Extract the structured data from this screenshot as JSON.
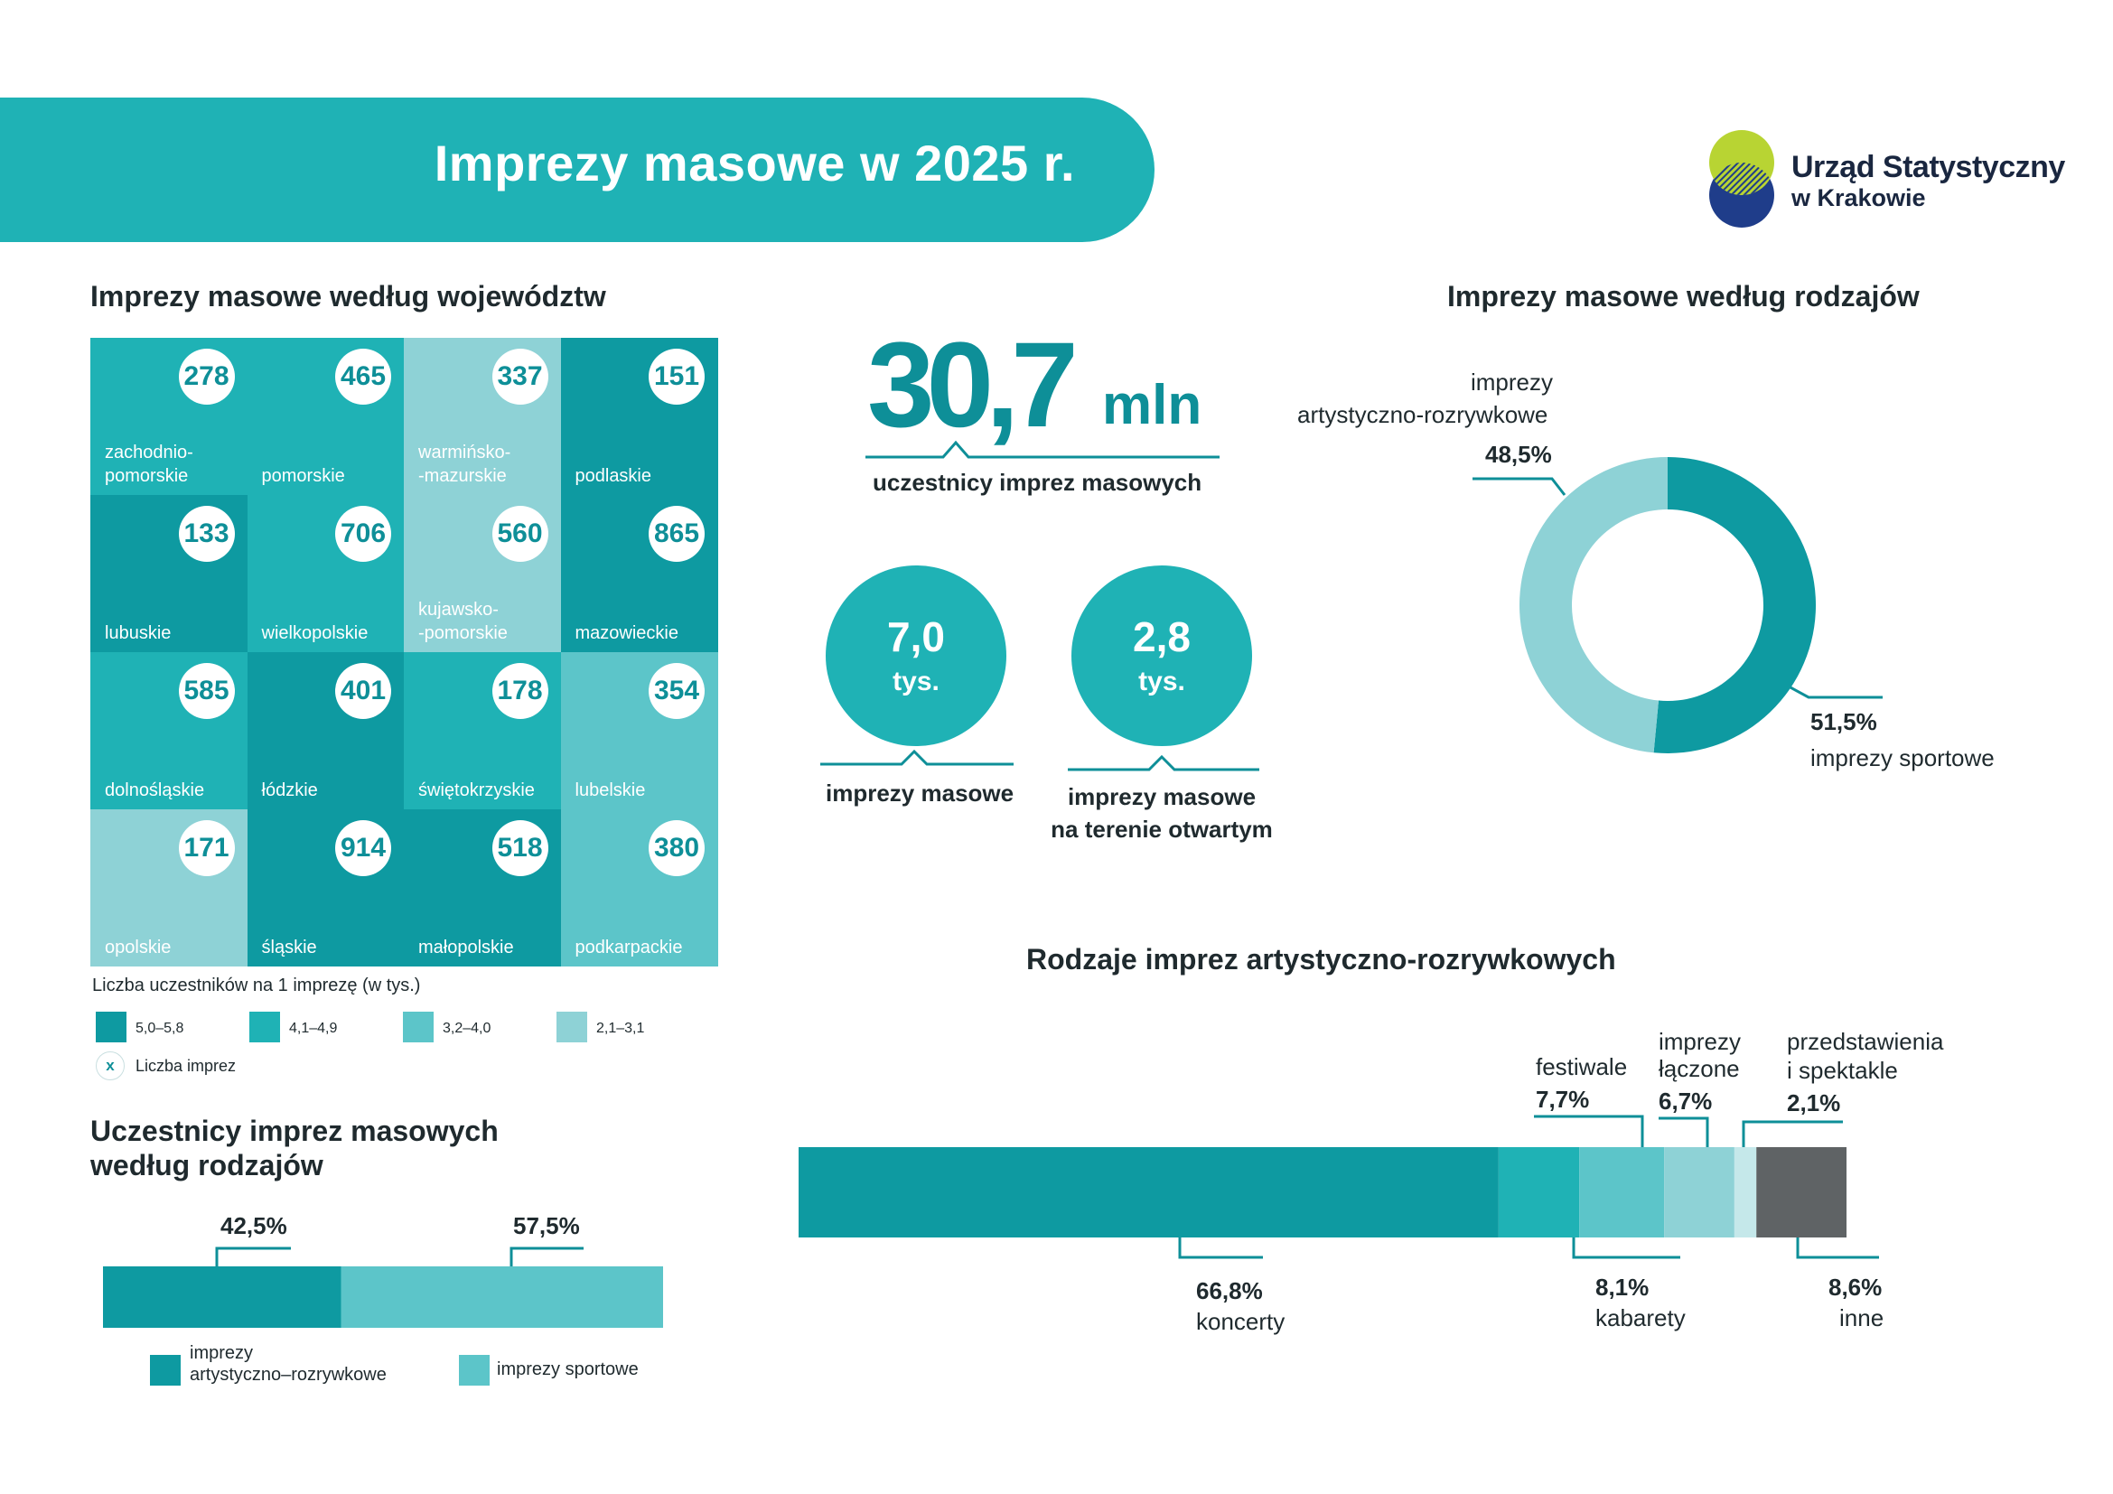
{
  "header": {
    "title": "Imprezy masowe w 2025 r.",
    "logo_line1": "Urząd Statystyczny",
    "logo_line2": "w Krakowie"
  },
  "map_section": {
    "title": "Imprezy masowe według województw",
    "tiles": [
      {
        "name": "zachodnio-\npomorskie",
        "count": "278",
        "color": "#1fb2b5"
      },
      {
        "name": "pomorskie",
        "count": "465",
        "color": "#1fb2b5"
      },
      {
        "name": "warmińsko-\n-mazurskie",
        "count": "337",
        "color": "#8ed2d6"
      },
      {
        "name": "podlaskie",
        "count": "151",
        "color": "#0e9aa1"
      },
      {
        "name": "lubuskie",
        "count": "133",
        "color": "#0e9aa1"
      },
      {
        "name": "wielkopolskie",
        "count": "706",
        "color": "#1fb2b5"
      },
      {
        "name": "kujawsko-\n-pomorskie",
        "count": "560",
        "color": "#8ed2d6"
      },
      {
        "name": "mazowieckie",
        "count": "865",
        "color": "#0e9aa1"
      },
      {
        "name": "dolnośląskie",
        "count": "585",
        "color": "#1fb2b5"
      },
      {
        "name": "łódzkie",
        "count": "401",
        "color": "#0e9aa1"
      },
      {
        "name": "świętokrzyskie",
        "count": "178",
        "color": "#1fb2b5"
      },
      {
        "name": "lubelskie",
        "count": "354",
        "color": "#5cc5c9"
      },
      {
        "name": "opolskie",
        "count": "171",
        "color": "#8ed2d6"
      },
      {
        "name": "śląskie",
        "count": "914",
        "color": "#0e9aa1"
      },
      {
        "name": "małopolskie",
        "count": "518",
        "color": "#0e9aa1"
      },
      {
        "name": "podkarpackie",
        "count": "380",
        "color": "#5cc5c9"
      }
    ],
    "legend": {
      "caption": "Liczba uczestników na 1 imprezę (w tys.)",
      "items": [
        {
          "label": "5,0–5,8",
          "color": "#0e9aa1"
        },
        {
          "label": "4,1–4,9",
          "color": "#1fb2b5"
        },
        {
          "label": "3,2–4,0",
          "color": "#5cc5c9"
        },
        {
          "label": "2,1–3,1",
          "color": "#8ed2d6"
        }
      ],
      "count_symbol": "x",
      "count_label": "Liczba imprez"
    }
  },
  "highlights": {
    "participants_value": "30,7",
    "participants_unit": "mln",
    "participants_caption": "uczestnicy imprez masowych",
    "events_value": "7,0",
    "events_unit": "tys.",
    "events_caption": "imprezy masowe",
    "open_value": "2,8",
    "open_unit": "tys.",
    "open_caption_line1": "imprezy masowe",
    "open_caption_line2": "na terenie otwartym"
  },
  "colors": {
    "dark": "#0e9aa1",
    "main": "#1fb2b5",
    "mid": "#5cc5c9",
    "light": "#8ed2d6",
    "pale": "#c5e8ea",
    "grey": "#5f6365",
    "accent_text": "#0e8f98"
  },
  "chart_data": [
    {
      "type": "pie",
      "title": "Imprezy masowe według rodzajów",
      "labels": [
        "imprezy artystyczno-rozrywkowe",
        "imprezy sportowe"
      ],
      "values": [
        48.5,
        51.5
      ],
      "value_labels": [
        "48,5%",
        "51,5%"
      ],
      "label_line1": "imprezy",
      "label_line2": "artystyczno-rozrywkowe",
      "colors": [
        "#8ed2d6",
        "#0e9aa1"
      ],
      "donut": true
    },
    {
      "type": "bar",
      "title": "Uczestnicy  imprez masowych",
      "title_line2": "według rodzajów",
      "stacked": true,
      "orientation": "horizontal",
      "series": [
        {
          "name": "imprezy artystyczno–rozrywkowe",
          "value": 42.5,
          "value_label": "42,5%",
          "color": "#0e9aa1"
        },
        {
          "name": "imprezy sportowe",
          "value": 57.5,
          "value_label": "57,5%",
          "color": "#5cc5c9"
        }
      ],
      "legend_line1": "imprezy",
      "legend_line2": "artystyczno–rozrywkowe"
    },
    {
      "type": "bar",
      "title": "Rodzaje imprez artystyczno-rozrywkowych",
      "stacked": true,
      "orientation": "horizontal",
      "segments": [
        {
          "name": "koncerty",
          "value": 66.8,
          "value_label": "66,8%",
          "color": "#0e9aa1"
        },
        {
          "name": "festiwale",
          "value": 7.7,
          "value_label": "7,7%",
          "color": "#1fb2b5"
        },
        {
          "name": "kabarety",
          "value": 8.1,
          "value_label": "8,1%",
          "color": "#5cc5c9"
        },
        {
          "name": "imprezy łączone",
          "value": 6.7,
          "value_label": "6,7%",
          "color": "#8ed2d6"
        },
        {
          "name": "przedstawienia i spektakle",
          "value": 2.1,
          "value_label": "2,1%",
          "color": "#c5e8ea"
        },
        {
          "name": "inne",
          "value": 8.6,
          "value_label": "8,6%",
          "color": "#5f6365"
        }
      ],
      "label_texts": {
        "imprezy_line1": "imprezy",
        "imprezy_line2": "łączone",
        "przed_line1": "przedstawienia",
        "przed_line2": "i spektakle"
      }
    }
  ]
}
